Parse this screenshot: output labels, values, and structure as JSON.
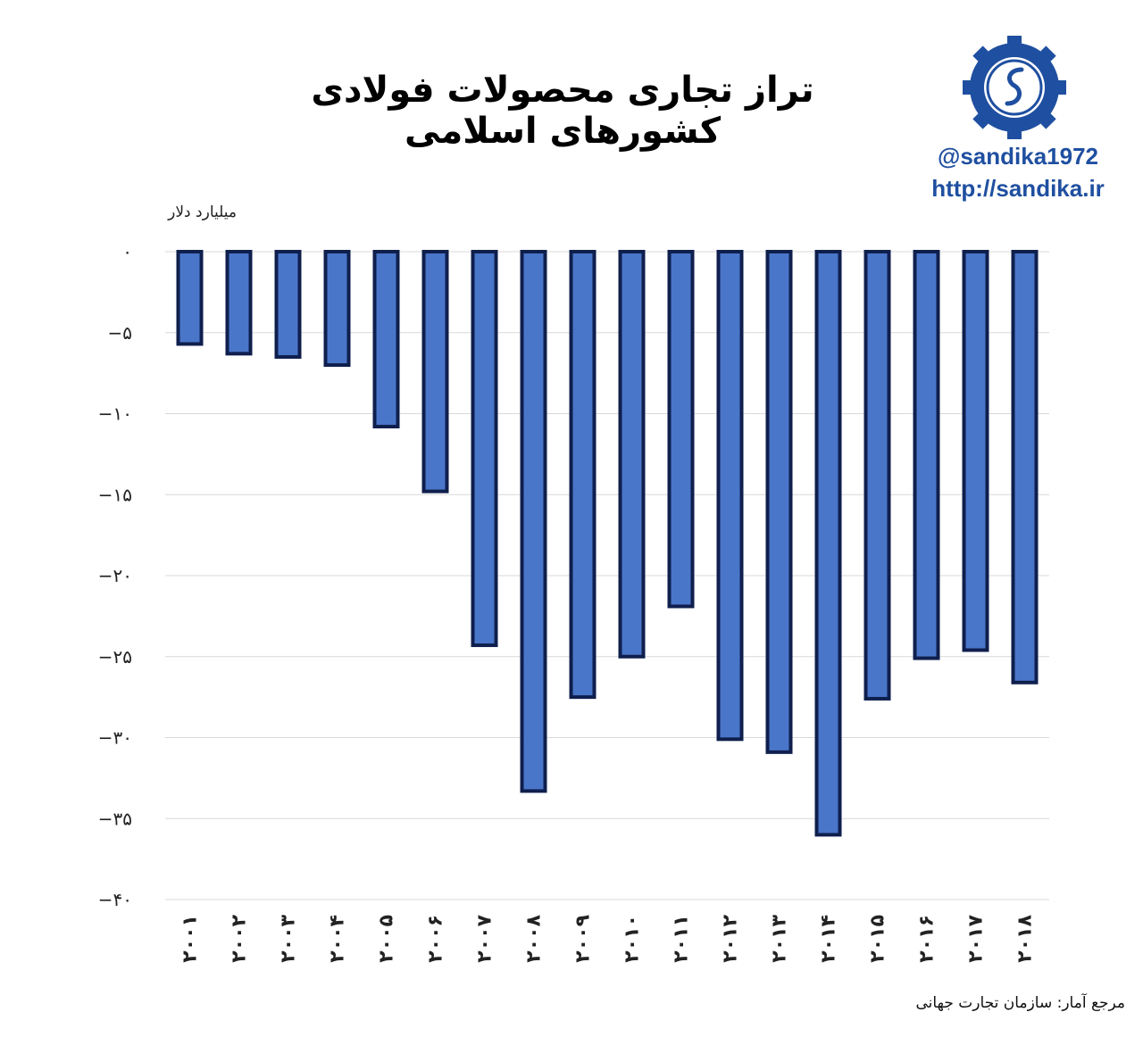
{
  "header": {
    "title": "تراز تجاری محصولات فولادی کشورهای اسلامی",
    "handle": "@sandika1972",
    "url": "http://sandika.ir"
  },
  "footer": {
    "source": "مرجع آمار: سازمان تجارت جهانی"
  },
  "colors": {
    "bar_fill": "#4a76c9",
    "bar_stroke": "#0f1f4d",
    "grid": "#d9d9d9",
    "brand": "#1f4fa0"
  },
  "icons": {
    "logo": "sandika-gear-logo-icon"
  },
  "chart_data": {
    "type": "bar",
    "ylabel": "میلیارد دلار",
    "categories": [
      "۲۰۰۱",
      "۲۰۰۲",
      "۲۰۰۳",
      "۲۰۰۴",
      "۲۰۰۵",
      "۲۰۰۶",
      "۲۰۰۷",
      "۲۰۰۸",
      "۲۰۰۹",
      "۲۰۱۰",
      "۲۰۱۱",
      "۲۰۱۲",
      "۲۰۱۳",
      "۲۰۱۴",
      "۲۰۱۵",
      "۲۰۱۶",
      "۲۰۱۷",
      "۲۰۱۸"
    ],
    "values": [
      -5.7,
      -6.3,
      -6.5,
      -7.0,
      -10.8,
      -14.8,
      -24.3,
      -33.3,
      -27.5,
      -25.0,
      -21.9,
      -30.1,
      -30.9,
      -36.0,
      -27.6,
      -25.1,
      -24.6,
      -26.6
    ],
    "ylim": [
      -40,
      0
    ],
    "yticks": [
      0,
      -5,
      -10,
      -15,
      -20,
      -25,
      -30,
      -35,
      -40
    ],
    "ytick_labels": [
      "۰",
      "−۵",
      "−۱۰",
      "−۱۵",
      "−۲۰",
      "−۲۵",
      "−۳۰",
      "−۳۵",
      "−۴۰"
    ],
    "grid": true,
    "legend": "none"
  }
}
